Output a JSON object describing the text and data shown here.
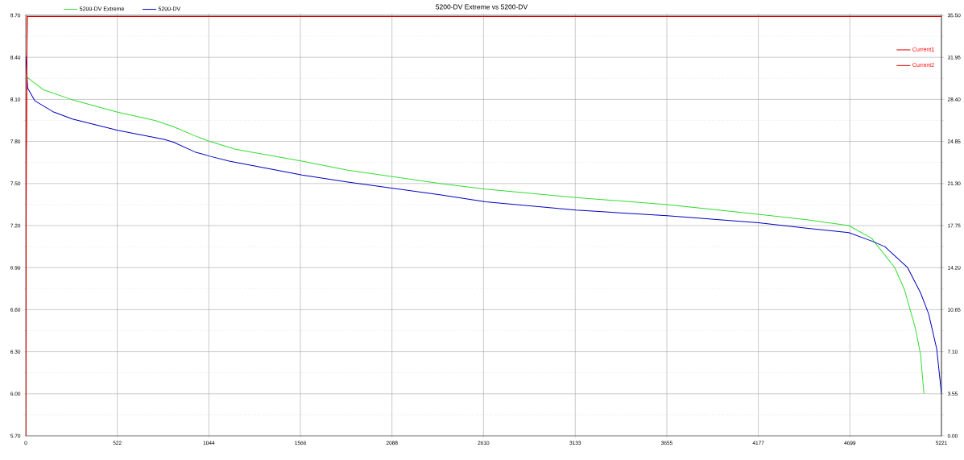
{
  "chart_data": {
    "type": "line",
    "title": "5200-DV Extreme vs 5200-DV",
    "xlim": [
      0,
      5221
    ],
    "xticks": [
      0,
      522,
      1044,
      1566,
      2088,
      2610,
      3133,
      3655,
      4177,
      4699,
      5221
    ],
    "ylim": [
      5.7,
      8.7
    ],
    "yticks": [
      {
        "value": 5.7,
        "label": "5.70"
      },
      {
        "value": 6.0,
        "label": "6.00"
      },
      {
        "value": 6.3,
        "label": "6.30"
      },
      {
        "value": 6.6,
        "label": "6.60"
      },
      {
        "value": 6.9,
        "label": "6.90"
      },
      {
        "value": 7.2,
        "label": "7.20"
      },
      {
        "value": 7.5,
        "label": "7.50"
      },
      {
        "value": 7.8,
        "label": "7.80"
      },
      {
        "value": 8.1,
        "label": "8.10"
      },
      {
        "value": 8.4,
        "label": "8.40"
      },
      {
        "value": 8.7,
        "label": "8.70"
      }
    ],
    "y2lim": [
      0,
      35.5
    ],
    "y2ticks": [
      {
        "value": 0,
        "label": "0.00"
      },
      {
        "value": 3.55,
        "label": "3.55"
      },
      {
        "value": 7.1,
        "label": "7.10"
      },
      {
        "value": 10.65,
        "label": "10.65"
      },
      {
        "value": 14.2,
        "label": "14.20"
      },
      {
        "value": 17.75,
        "label": "17.75"
      },
      {
        "value": 21.3,
        "label": "21.30"
      },
      {
        "value": 24.85,
        "label": "24.85"
      },
      {
        "value": 28.4,
        "label": "28.40"
      },
      {
        "value": 31.95,
        "label": "31.95"
      },
      {
        "value": 35.5,
        "label": "35.50"
      }
    ],
    "grid": true,
    "legend": "top left",
    "series": [
      {
        "name": "5200-DV Extreme",
        "color": "#33dd33",
        "x": [
          0,
          6,
          98,
          259,
          519,
          736,
          842,
          965,
          1049,
          1195,
          1575,
          1836,
          2360,
          2622,
          3136,
          3657,
          4178,
          4462,
          4693,
          4822,
          4955,
          5011,
          5072,
          5102,
          5121
        ],
        "values": [
          8.4,
          8.26,
          8.17,
          8.1,
          8.01,
          7.95,
          7.905,
          7.84,
          7.8,
          7.745,
          7.66,
          7.595,
          7.5,
          7.46,
          7.4,
          7.35,
          7.28,
          7.24,
          7.2,
          7.11,
          6.9,
          6.74,
          6.47,
          6.28,
          6.0
        ]
      },
      {
        "name": "5200-DV",
        "color": "#0000c0",
        "x": [
          0,
          11,
          52,
          159,
          266,
          524,
          789,
          842,
          965,
          1049,
          1160,
          1575,
          1836,
          2361,
          2622,
          3136,
          3657,
          4178,
          4462,
          4693,
          4822,
          4898,
          5028,
          5102,
          5148,
          5194,
          5221
        ],
        "values": [
          8.41,
          8.18,
          8.09,
          8.01,
          7.96,
          7.88,
          7.815,
          7.795,
          7.725,
          7.695,
          7.66,
          7.56,
          7.51,
          7.42,
          7.37,
          7.31,
          7.27,
          7.22,
          7.18,
          7.15,
          7.09,
          7.05,
          6.9,
          6.72,
          6.57,
          6.32,
          6.0
        ]
      },
      {
        "name": "Current1",
        "color": "#e00000",
        "axis": "y2",
        "x": [
          0,
          3,
          8,
          5221
        ],
        "values": [
          0,
          23.6,
          35.4,
          35.4
        ]
      },
      {
        "name": "Current2",
        "color": "#e00000",
        "axis": "y2",
        "x": [
          0,
          3,
          8,
          5221
        ],
        "values": [
          0,
          23.6,
          35.4,
          35.4
        ]
      }
    ]
  }
}
